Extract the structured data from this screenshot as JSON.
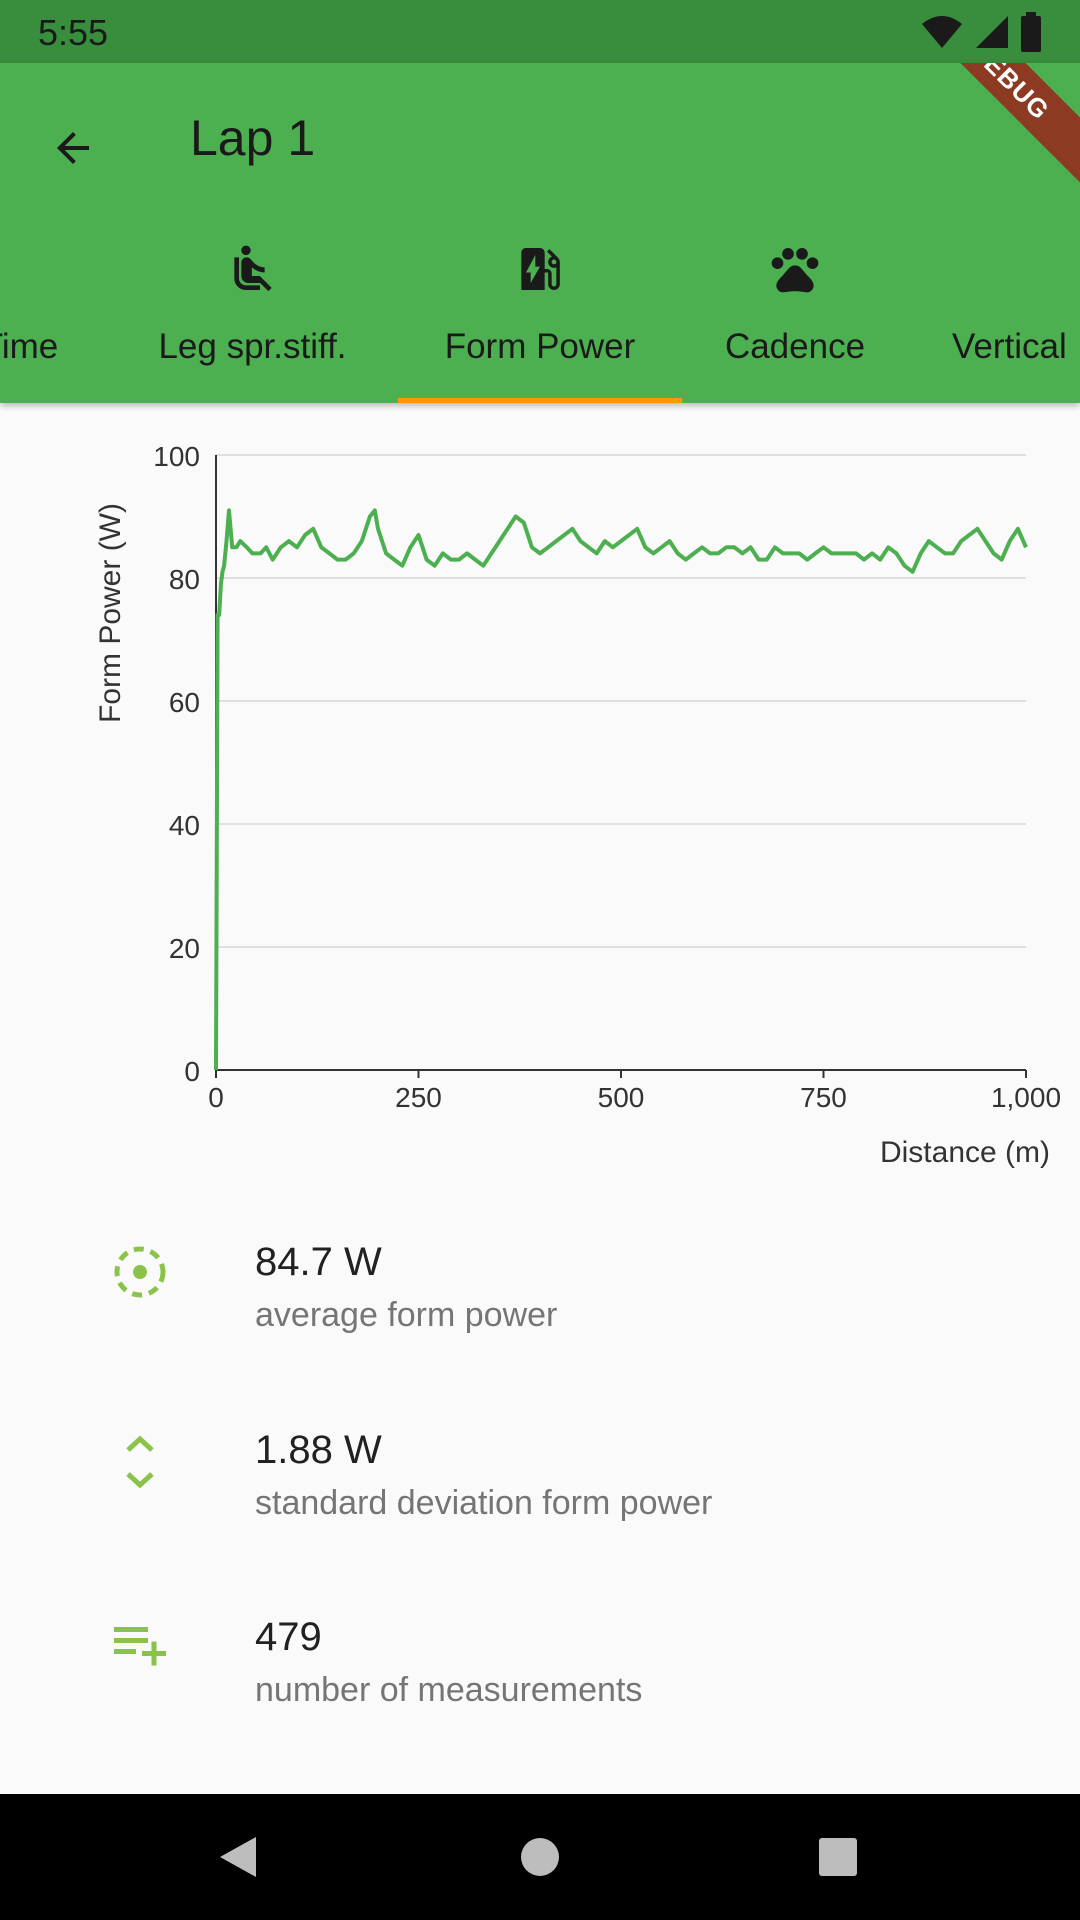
{
  "status_bar": {
    "time": "5:55"
  },
  "debug_banner": "DEBUG",
  "app_bar": {
    "title": "Lap 1"
  },
  "tabs": [
    {
      "label": "Time",
      "icon": "clock-icon"
    },
    {
      "label": "Leg spr.stiff.",
      "icon": "seat-icon"
    },
    {
      "label": "Form Power",
      "icon": "ev-station-icon",
      "selected": true
    },
    {
      "label": "Cadence",
      "icon": "paw-icon"
    },
    {
      "label": "Vertical",
      "icon": "vertical-icon"
    }
  ],
  "colors": {
    "primary": "#4caf50",
    "status": "#388e3c",
    "accent": "#ff9800",
    "line": "#4caf50",
    "stat_icon": "#8bc34a"
  },
  "chart_data": {
    "type": "line",
    "ylabel": "Form Power (W)",
    "xlabel": "Distance (m)",
    "xlim": [
      0,
      1000
    ],
    "ylim": [
      0,
      100
    ],
    "x_ticks": [
      "0",
      "250",
      "500",
      "750",
      "1,000"
    ],
    "y_ticks": [
      "0",
      "20",
      "40",
      "60",
      "80",
      "100"
    ],
    "grid": true,
    "series": [
      {
        "x": [
          0,
          2,
          4,
          6,
          8,
          10,
          13,
          16,
          20,
          25,
          30,
          38,
          45,
          55,
          62,
          70,
          80,
          90,
          100,
          110,
          120,
          130,
          140,
          150,
          160,
          170,
          180,
          190,
          196,
          200,
          210,
          220,
          230,
          240,
          250,
          260,
          270,
          280,
          290,
          300,
          310,
          320,
          330,
          340,
          350,
          360,
          370,
          380,
          390,
          400,
          410,
          420,
          430,
          440,
          450,
          460,
          470,
          480,
          490,
          500,
          510,
          520,
          530,
          540,
          550,
          560,
          570,
          580,
          590,
          600,
          610,
          620,
          630,
          640,
          650,
          660,
          670,
          680,
          690,
          700,
          710,
          720,
          730,
          740,
          750,
          760,
          770,
          780,
          790,
          800,
          810,
          820,
          830,
          840,
          850,
          860,
          870,
          880,
          890,
          900,
          910,
          920,
          930,
          940,
          950,
          960,
          970,
          980,
          990,
          1000
        ],
        "y": [
          0,
          74,
          74,
          79,
          81,
          82,
          86,
          91,
          85,
          85,
          86,
          85,
          84,
          84,
          85,
          83,
          85,
          86,
          85,
          87,
          88,
          85,
          84,
          83,
          83,
          84,
          86,
          90,
          91,
          88,
          84,
          83,
          82,
          85,
          87,
          83,
          82,
          84,
          83,
          83,
          84,
          83,
          82,
          84,
          86,
          88,
          90,
          89,
          85,
          84,
          85,
          86,
          87,
          88,
          86,
          85,
          84,
          86,
          85,
          86,
          87,
          88,
          85,
          84,
          85,
          86,
          84,
          83,
          84,
          85,
          84,
          84,
          85,
          85,
          84,
          85,
          83,
          83,
          85,
          84,
          84,
          84,
          83,
          84,
          85,
          84,
          84,
          84,
          84,
          83,
          84,
          83,
          85,
          84,
          82,
          81,
          84,
          86,
          85,
          84,
          84,
          86,
          87,
          88,
          86,
          84,
          83,
          86,
          88,
          85
        ]
      }
    ]
  },
  "stats": [
    {
      "value": "84.7 W",
      "label": "average form power",
      "icon": "target-dashed-icon"
    },
    {
      "value": "1.88 W",
      "label": "standard deviation form power",
      "icon": "unfold-icon"
    },
    {
      "value": "479",
      "label": "number of measurements",
      "icon": "playlist-add-icon"
    }
  ]
}
